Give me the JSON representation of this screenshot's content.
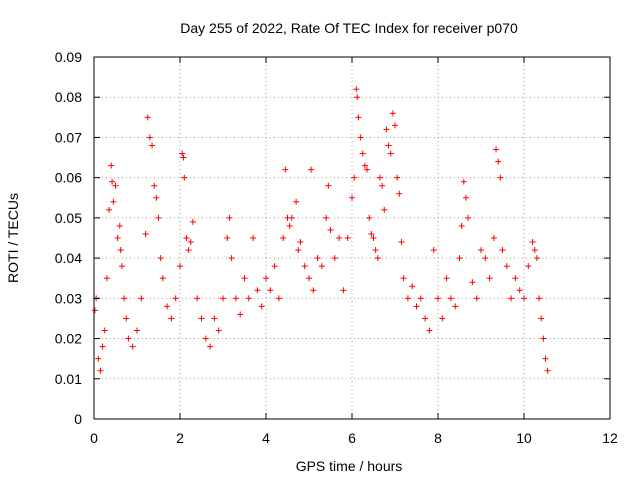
{
  "chart_data": {
    "type": "scatter",
    "title": "Day 255 of 2022, Rate Of TEC Index for receiver p070",
    "xlabel": "GPS time / hours",
    "ylabel": "ROTI / TECUs",
    "xlim": [
      0,
      12
    ],
    "ylim": [
      0,
      0.09
    ],
    "xticks": [
      0,
      2,
      4,
      6,
      8,
      10,
      12
    ],
    "yticks": [
      0,
      0.01,
      0.02,
      0.03,
      0.04,
      0.05,
      0.06,
      0.07,
      0.08,
      0.09
    ],
    "xtick_labels": [
      "0",
      "2",
      "4",
      "6",
      "8",
      "10",
      "12"
    ],
    "ytick_labels": [
      "0",
      "0.01",
      "0.02",
      "0.03",
      "0.04",
      "0.05",
      "0.06",
      "0.07",
      "0.08",
      "0.09"
    ],
    "grid": true,
    "marker": "+",
    "color": "#ff0000",
    "x_data_range": [
      0,
      10.6
    ],
    "series": [
      {
        "name": "ROTI",
        "points": [
          [
            0.02,
            0.027
          ],
          [
            0.05,
            0.03
          ],
          [
            0.1,
            0.015
          ],
          [
            0.15,
            0.012
          ],
          [
            0.2,
            0.018
          ],
          [
            0.25,
            0.022
          ],
          [
            0.3,
            0.035
          ],
          [
            0.35,
            0.052
          ],
          [
            0.4,
            0.063
          ],
          [
            0.42,
            0.059
          ],
          [
            0.45,
            0.054
          ],
          [
            0.5,
            0.058
          ],
          [
            0.55,
            0.045
          ],
          [
            0.6,
            0.048
          ],
          [
            0.62,
            0.042
          ],
          [
            0.65,
            0.038
          ],
          [
            0.7,
            0.03
          ],
          [
            0.75,
            0.025
          ],
          [
            0.8,
            0.02
          ],
          [
            0.9,
            0.018
          ],
          [
            1.0,
            0.022
          ],
          [
            1.1,
            0.03
          ],
          [
            1.2,
            0.046
          ],
          [
            1.25,
            0.075
          ],
          [
            1.3,
            0.07
          ],
          [
            1.35,
            0.068
          ],
          [
            1.4,
            0.058
          ],
          [
            1.45,
            0.055
          ],
          [
            1.5,
            0.05
          ],
          [
            1.55,
            0.04
          ],
          [
            1.6,
            0.035
          ],
          [
            1.7,
            0.028
          ],
          [
            1.8,
            0.025
          ],
          [
            1.9,
            0.03
          ],
          [
            2.0,
            0.038
          ],
          [
            2.05,
            0.066
          ],
          [
            2.08,
            0.065
          ],
          [
            2.1,
            0.06
          ],
          [
            2.15,
            0.045
          ],
          [
            2.2,
            0.042
          ],
          [
            2.25,
            0.044
          ],
          [
            2.3,
            0.049
          ],
          [
            2.4,
            0.03
          ],
          [
            2.5,
            0.025
          ],
          [
            2.6,
            0.02
          ],
          [
            2.7,
            0.018
          ],
          [
            2.8,
            0.025
          ],
          [
            2.9,
            0.022
          ],
          [
            3.0,
            0.03
          ],
          [
            3.1,
            0.045
          ],
          [
            3.15,
            0.05
          ],
          [
            3.2,
            0.04
          ],
          [
            3.3,
            0.03
          ],
          [
            3.4,
            0.026
          ],
          [
            3.5,
            0.035
          ],
          [
            3.6,
            0.03
          ],
          [
            3.7,
            0.045
          ],
          [
            3.8,
            0.032
          ],
          [
            3.9,
            0.028
          ],
          [
            4.0,
            0.035
          ],
          [
            4.1,
            0.032
          ],
          [
            4.2,
            0.038
          ],
          [
            4.3,
            0.03
          ],
          [
            4.4,
            0.045
          ],
          [
            4.45,
            0.062
          ],
          [
            4.5,
            0.05
          ],
          [
            4.55,
            0.048
          ],
          [
            4.6,
            0.05
          ],
          [
            4.7,
            0.054
          ],
          [
            4.75,
            0.042
          ],
          [
            4.8,
            0.044
          ],
          [
            4.9,
            0.038
          ],
          [
            5.0,
            0.035
          ],
          [
            5.05,
            0.062
          ],
          [
            5.1,
            0.032
          ],
          [
            5.2,
            0.04
          ],
          [
            5.3,
            0.038
          ],
          [
            5.4,
            0.05
          ],
          [
            5.45,
            0.058
          ],
          [
            5.5,
            0.047
          ],
          [
            5.6,
            0.04
          ],
          [
            5.7,
            0.045
          ],
          [
            5.8,
            0.032
          ],
          [
            5.9,
            0.045
          ],
          [
            6.0,
            0.055
          ],
          [
            6.05,
            0.06
          ],
          [
            6.1,
            0.082
          ],
          [
            6.12,
            0.08
          ],
          [
            6.15,
            0.075
          ],
          [
            6.2,
            0.07
          ],
          [
            6.25,
            0.066
          ],
          [
            6.3,
            0.063
          ],
          [
            6.35,
            0.062
          ],
          [
            6.4,
            0.05
          ],
          [
            6.45,
            0.046
          ],
          [
            6.5,
            0.045
          ],
          [
            6.55,
            0.042
          ],
          [
            6.6,
            0.04
          ],
          [
            6.65,
            0.06
          ],
          [
            6.7,
            0.058
          ],
          [
            6.75,
            0.052
          ],
          [
            6.8,
            0.072
          ],
          [
            6.85,
            0.068
          ],
          [
            6.9,
            0.066
          ],
          [
            6.95,
            0.076
          ],
          [
            7.0,
            0.073
          ],
          [
            7.05,
            0.06
          ],
          [
            7.1,
            0.056
          ],
          [
            7.15,
            0.044
          ],
          [
            7.2,
            0.035
          ],
          [
            7.3,
            0.03
          ],
          [
            7.4,
            0.033
          ],
          [
            7.5,
            0.028
          ],
          [
            7.6,
            0.03
          ],
          [
            7.7,
            0.025
          ],
          [
            7.8,
            0.022
          ],
          [
            7.9,
            0.042
          ],
          [
            8.0,
            0.03
          ],
          [
            8.1,
            0.025
          ],
          [
            8.2,
            0.035
          ],
          [
            8.3,
            0.03
          ],
          [
            8.4,
            0.028
          ],
          [
            8.5,
            0.04
          ],
          [
            8.55,
            0.048
          ],
          [
            8.6,
            0.059
          ],
          [
            8.65,
            0.055
          ],
          [
            8.7,
            0.05
          ],
          [
            8.8,
            0.034
          ],
          [
            8.9,
            0.03
          ],
          [
            9.0,
            0.042
          ],
          [
            9.1,
            0.04
          ],
          [
            9.2,
            0.035
          ],
          [
            9.3,
            0.045
          ],
          [
            9.35,
            0.067
          ],
          [
            9.4,
            0.064
          ],
          [
            9.45,
            0.06
          ],
          [
            9.5,
            0.042
          ],
          [
            9.6,
            0.038
          ],
          [
            9.7,
            0.03
          ],
          [
            9.8,
            0.035
          ],
          [
            9.9,
            0.032
          ],
          [
            10.0,
            0.03
          ],
          [
            10.1,
            0.038
          ],
          [
            10.2,
            0.044
          ],
          [
            10.25,
            0.042
          ],
          [
            10.3,
            0.04
          ],
          [
            10.35,
            0.03
          ],
          [
            10.4,
            0.025
          ],
          [
            10.45,
            0.02
          ],
          [
            10.5,
            0.015
          ],
          [
            10.55,
            0.012
          ]
        ]
      }
    ]
  }
}
